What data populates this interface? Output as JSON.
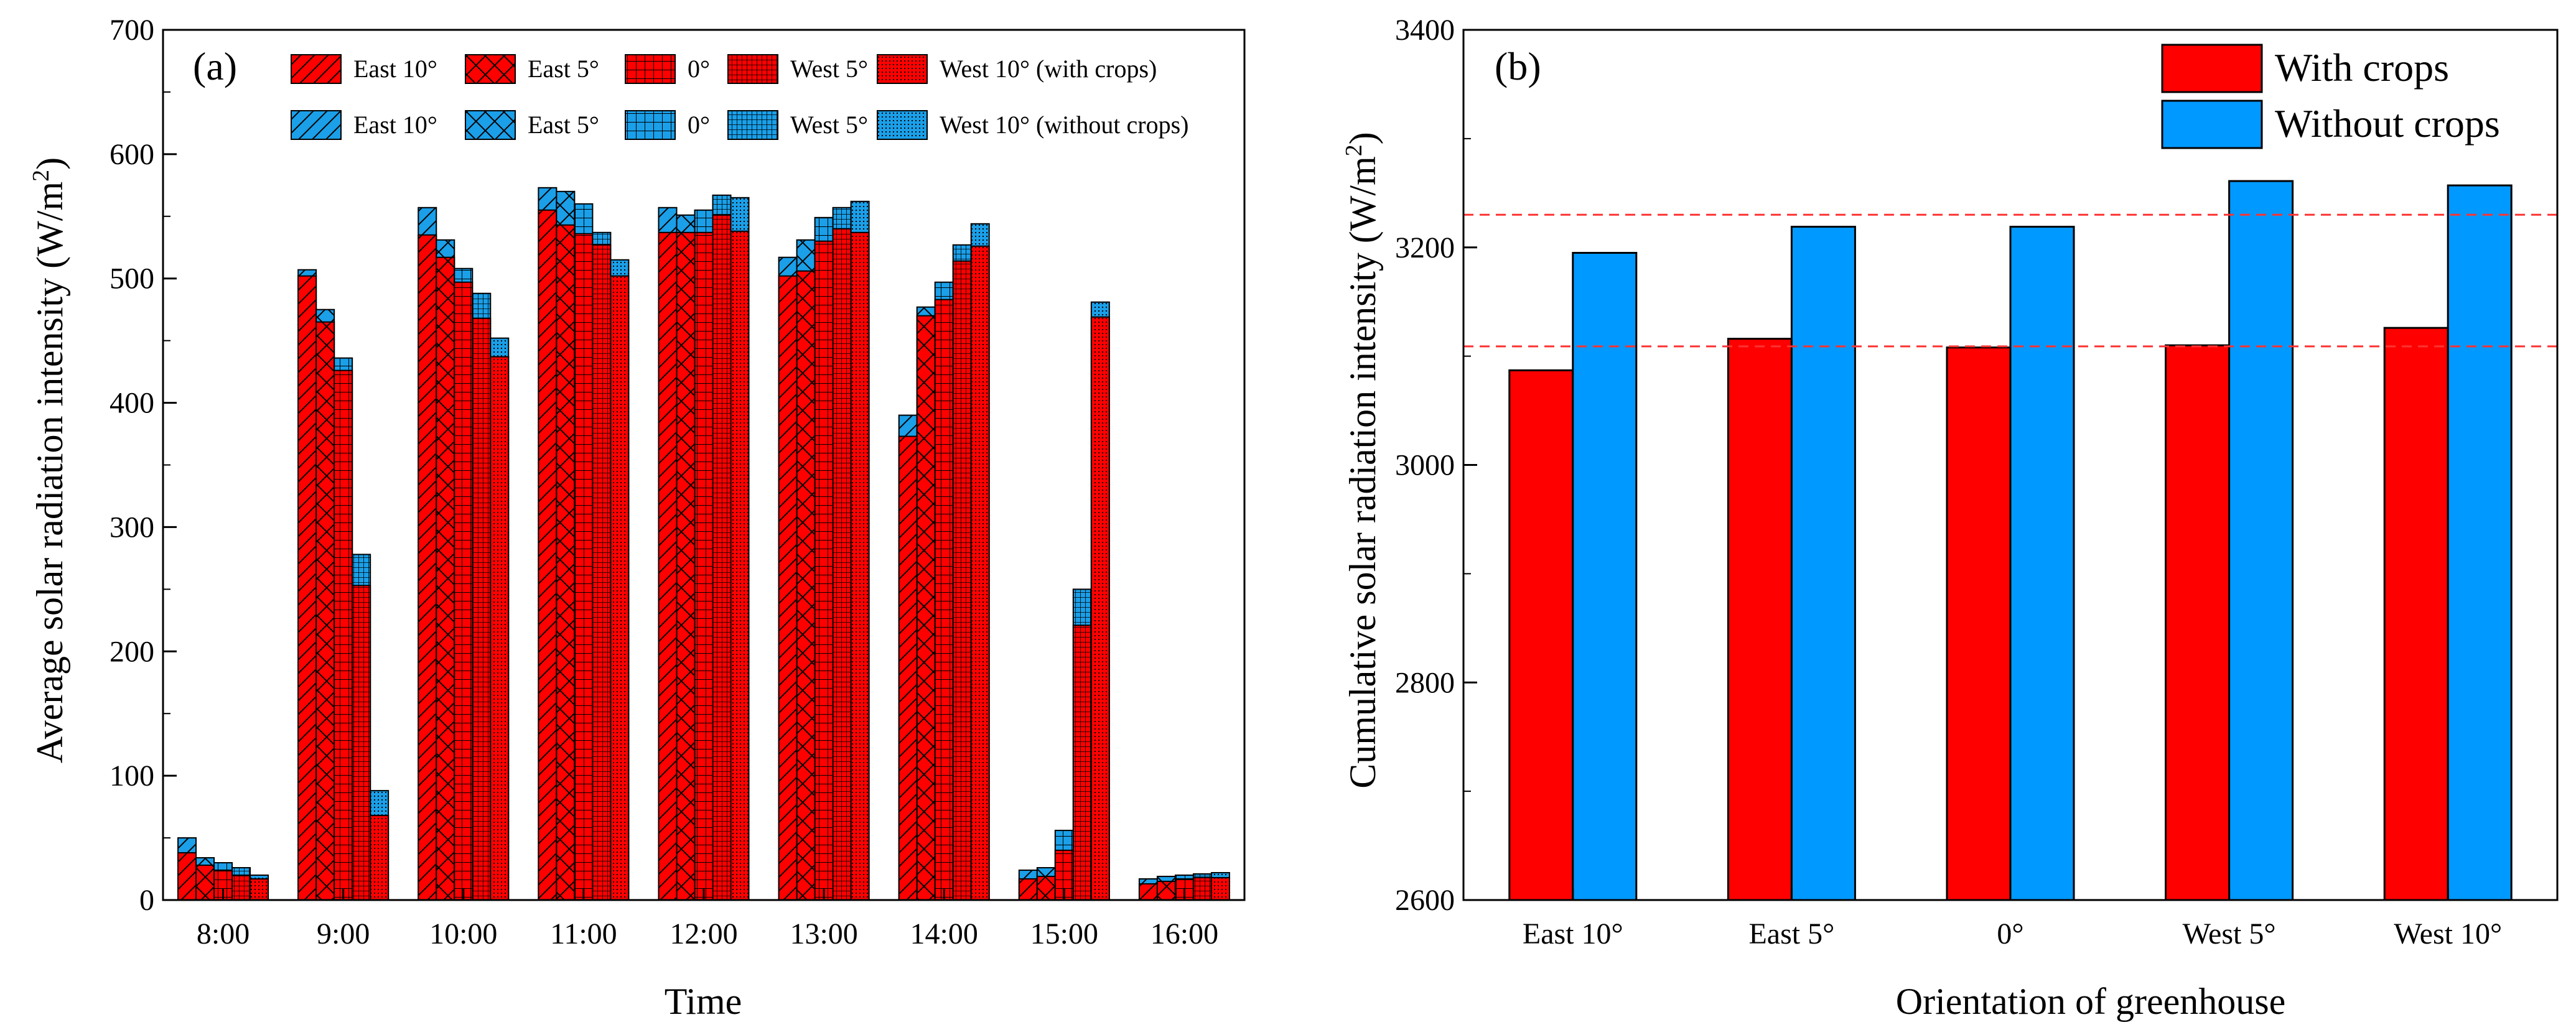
{
  "chart_data": [
    {
      "type": "bar",
      "panel_label": "(a)",
      "title": "",
      "xlabel": "Time",
      "ylabel_prefix": "Average solar radiation intensity (W/m",
      "ylabel_sup": "2",
      "ylabel_suffix": ")",
      "ylim": [
        0,
        700
      ],
      "yticks": [
        0,
        100,
        200,
        300,
        400,
        500,
        600,
        700
      ],
      "categories": [
        "8:00",
        "9:00",
        "10:00",
        "11:00",
        "12:00",
        "13:00",
        "14:00",
        "15:00",
        "16:00"
      ],
      "orientations": [
        "East 10°",
        "East 5°",
        "0°",
        "West 5°",
        "West 10°"
      ],
      "legend_with_suffix": "(with crops)",
      "legend_without_suffix": "(without crops)",
      "series": [
        {
          "name": "East 10° (with crops)",
          "values": [
            38,
            502,
            535,
            555,
            537,
            502,
            373,
            17,
            13
          ]
        },
        {
          "name": "East 5° (with crops)",
          "values": [
            28,
            465,
            517,
            543,
            537,
            506,
            470,
            19,
            15
          ]
        },
        {
          "name": "0° (with crops)",
          "values": [
            24,
            426,
            497,
            536,
            537,
            530,
            483,
            40,
            17
          ]
        },
        {
          "name": "West 5° (with crops)",
          "values": [
            20,
            253,
            468,
            527,
            551,
            540,
            514,
            221,
            18
          ]
        },
        {
          "name": "West 10° (with crops)",
          "values": [
            17,
            68,
            437,
            502,
            538,
            537,
            526,
            469,
            18
          ]
        },
        {
          "name": "East 10° (without crops)",
          "values": [
            50,
            507,
            557,
            573,
            557,
            517,
            390,
            24,
            17
          ]
        },
        {
          "name": "East 5° (without crops)",
          "values": [
            34,
            475,
            531,
            570,
            551,
            531,
            477,
            26,
            19
          ]
        },
        {
          "name": "0° (without crops)",
          "values": [
            30,
            436,
            508,
            560,
            555,
            549,
            497,
            56,
            20
          ]
        },
        {
          "name": "West 5° (without crops)",
          "values": [
            26,
            278,
            488,
            537,
            567,
            557,
            527,
            250,
            21
          ]
        },
        {
          "name": "West 10° (without crops)",
          "values": [
            20,
            88,
            452,
            515,
            565,
            562,
            544,
            481,
            22
          ]
        }
      ]
    },
    {
      "type": "bar",
      "panel_label": "(b)",
      "title": "",
      "xlabel": "Orientation of greenhouse",
      "ylabel_prefix": "Cumulative solar radiation intensity (W/m",
      "ylabel_sup": "2",
      "ylabel_suffix": ")",
      "ylim": [
        2600,
        3400
      ],
      "yticks": [
        2600,
        2800,
        3000,
        3200,
        3400
      ],
      "categories": [
        "East 10°",
        "East 5°",
        "0°",
        "West 5°",
        "West 10°"
      ],
      "series": [
        {
          "name": "With crops",
          "color": "#ff0000",
          "values": [
            3087,
            3116,
            3108,
            3110,
            3126
          ]
        },
        {
          "name": "Without crops",
          "color": "#0099ff",
          "values": [
            3195,
            3219,
            3219,
            3261,
            3257
          ]
        }
      ],
      "reference_lines": [
        3230,
        3109
      ],
      "reference_line_color": "#ff3333"
    }
  ],
  "colors": {
    "red": "#ff0000",
    "blue": "#1a9fe8",
    "line": "#000000"
  }
}
